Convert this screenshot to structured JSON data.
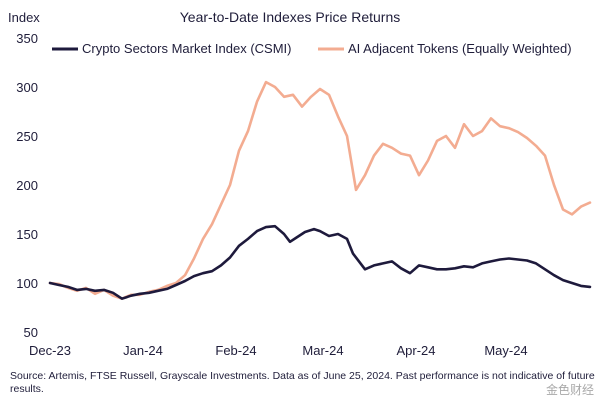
{
  "chart_data": {
    "type": "line",
    "title": "Year-to-Date Indexes Price Returns",
    "ylabel": "Index",
    "xlabel": "",
    "ylim": [
      50,
      350
    ],
    "yticks": [
      50,
      100,
      150,
      200,
      250,
      300,
      350
    ],
    "xlim": [
      0,
      180
    ],
    "xticks": [
      {
        "label": "Dec-23",
        "x": 0
      },
      {
        "label": "Jan-24",
        "x": 31
      },
      {
        "label": "Feb-24",
        "x": 62
      },
      {
        "label": "Mar-24",
        "x": 91
      },
      {
        "label": "Apr-24",
        "x": 122
      },
      {
        "label": "May-24",
        "x": 152
      }
    ],
    "legend_position": "top",
    "series": [
      {
        "name": "Crypto Sectors Market Index (CSMI)",
        "color": "#1e1a3c",
        "x": [
          0,
          3,
          6,
          9,
          12,
          15,
          18,
          21,
          24,
          27,
          30,
          33,
          36,
          39,
          42,
          45,
          48,
          51,
          54,
          57,
          60,
          63,
          66,
          69,
          72,
          75,
          78,
          80,
          82,
          85,
          88,
          90,
          93,
          96,
          99,
          101,
          103,
          105,
          108,
          111,
          114,
          117,
          120,
          123,
          126,
          129,
          132,
          135,
          138,
          141,
          144,
          147,
          150,
          153,
          156,
          159,
          162,
          165,
          168,
          171,
          174,
          177,
          180
        ],
        "y": [
          100,
          98,
          96,
          93,
          94,
          92,
          93,
          90,
          84,
          87,
          89,
          90,
          92,
          94,
          98,
          102,
          107,
          110,
          112,
          118,
          126,
          138,
          145,
          153,
          157,
          158,
          150,
          142,
          146,
          152,
          155,
          153,
          148,
          150,
          145,
          130,
          122,
          114,
          118,
          120,
          122,
          115,
          110,
          118,
          116,
          114,
          114,
          115,
          117,
          116,
          120,
          122,
          124,
          125,
          124,
          123,
          120,
          114,
          108,
          103,
          100,
          97,
          96
        ]
      },
      {
        "name": "AI Adjacent Tokens (Equally Weighted)",
        "color": "#f3ac91",
        "x": [
          0,
          3,
          6,
          9,
          12,
          15,
          18,
          21,
          24,
          27,
          30,
          33,
          36,
          39,
          42,
          45,
          48,
          51,
          54,
          57,
          60,
          63,
          66,
          69,
          72,
          75,
          78,
          81,
          84,
          87,
          90,
          93,
          96,
          99,
          102,
          105,
          108,
          111,
          114,
          117,
          120,
          123,
          126,
          129,
          132,
          135,
          138,
          141,
          144,
          147,
          150,
          153,
          156,
          159,
          162,
          165,
          168,
          171,
          174,
          177,
          180
        ],
        "y": [
          100,
          99,
          95,
          92,
          95,
          89,
          93,
          87,
          84,
          88,
          88,
          91,
          93,
          97,
          100,
          108,
          125,
          145,
          160,
          180,
          200,
          235,
          255,
          285,
          305,
          300,
          290,
          292,
          280,
          290,
          298,
          292,
          270,
          250,
          195,
          210,
          230,
          242,
          238,
          232,
          230,
          210,
          225,
          245,
          250,
          238,
          262,
          250,
          255,
          268,
          260,
          258,
          254,
          248,
          240,
          230,
          200,
          175,
          170,
          178,
          182
        ]
      }
    ]
  },
  "source_note": "Source: Artemis, FTSE Russell, Grayscale Investments. Data as of June 25, 2024. Past performance is not indicative of future results.",
  "watermark": "金色财经"
}
